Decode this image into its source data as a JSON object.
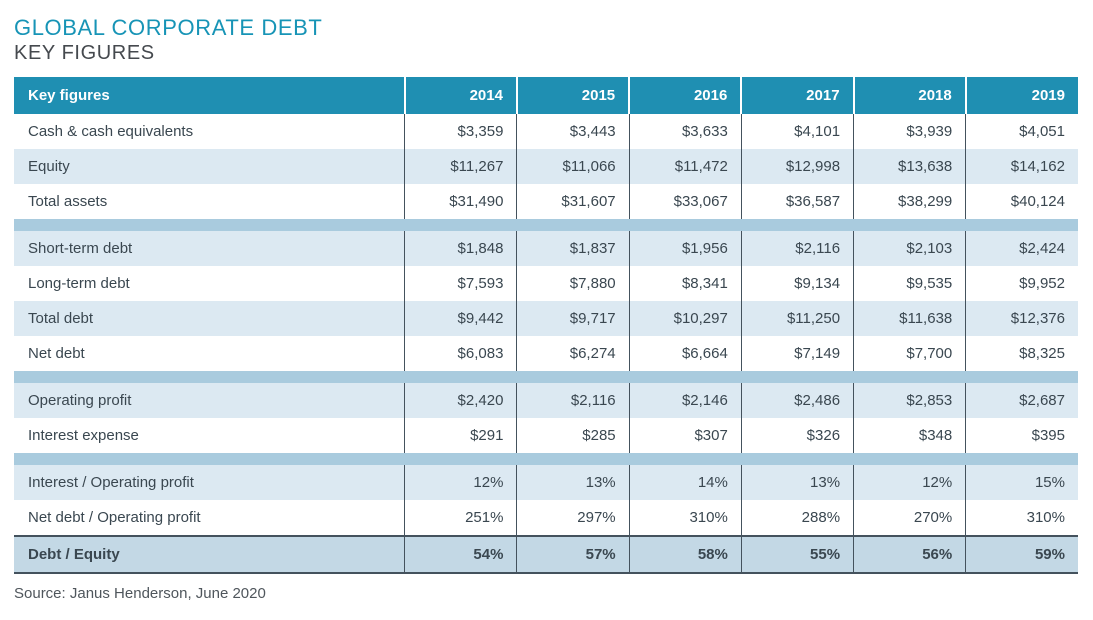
{
  "chart_data": {
    "type": "table",
    "title": "GLOBAL CORPORATE DEBT",
    "subtitle": "KEY FIGURES",
    "columns": [
      "Key figures",
      "2014",
      "2015",
      "2016",
      "2017",
      "2018",
      "2019"
    ],
    "groups": [
      {
        "rows": [
          {
            "label": "Cash & cash equivalents",
            "values": [
              "$3,359",
              "$3,443",
              "$3,633",
              "$4,101",
              "$3,939",
              "$4,051"
            ]
          },
          {
            "label": "Equity",
            "values": [
              "$11,267",
              "$11,066",
              "$11,472",
              "$12,998",
              "$13,638",
              "$14,162"
            ]
          },
          {
            "label": "Total assets",
            "values": [
              "$31,490",
              "$31,607",
              "$33,067",
              "$36,587",
              "$38,299",
              "$40,124"
            ]
          }
        ]
      },
      {
        "rows": [
          {
            "label": "Short-term debt",
            "values": [
              "$1,848",
              "$1,837",
              "$1,956",
              "$2,116",
              "$2,103",
              "$2,424"
            ]
          },
          {
            "label": "Long-term debt",
            "values": [
              "$7,593",
              "$7,880",
              "$8,341",
              "$9,134",
              "$9,535",
              "$9,952"
            ]
          },
          {
            "label": "Total debt",
            "values": [
              "$9,442",
              "$9,717",
              "$10,297",
              "$11,250",
              "$11,638",
              "$12,376"
            ]
          },
          {
            "label": "Net debt",
            "values": [
              "$6,083",
              "$6,274",
              "$6,664",
              "$7,149",
              "$7,700",
              "$8,325"
            ]
          }
        ]
      },
      {
        "rows": [
          {
            "label": "Operating profit",
            "values": [
              "$2,420",
              "$2,116",
              "$2,146",
              "$2,486",
              "$2,853",
              "$2,687"
            ]
          },
          {
            "label": "Interest expense",
            "values": [
              "$291",
              "$285",
              "$307",
              "$326",
              "$348",
              "$395"
            ]
          }
        ]
      },
      {
        "rows": [
          {
            "label": "Interest / Operating profit",
            "values": [
              "12%",
              "13%",
              "14%",
              "13%",
              "12%",
              "15%"
            ]
          },
          {
            "label": "Net debt / Operating profit",
            "values": [
              "251%",
              "297%",
              "310%",
              "288%",
              "270%",
              "310%"
            ]
          },
          {
            "label": "Debt / Equity",
            "values": [
              "54%",
              "57%",
              "58%",
              "55%",
              "56%",
              "59%"
            ],
            "emphasis": true
          }
        ]
      }
    ],
    "source": "Source: Janus Henderson, June 2020",
    "colors": {
      "header_bg": "#1F8FB2",
      "row_alt_bg": "#DCE9F2",
      "spacer_bg": "#A9CBDE",
      "total_row_bg": "#C3D8E5",
      "border_dark": "#44525D",
      "title_teal": "#1794B6",
      "subtitle_gray": "#45494E",
      "text_dark": "#3A4750"
    }
  }
}
